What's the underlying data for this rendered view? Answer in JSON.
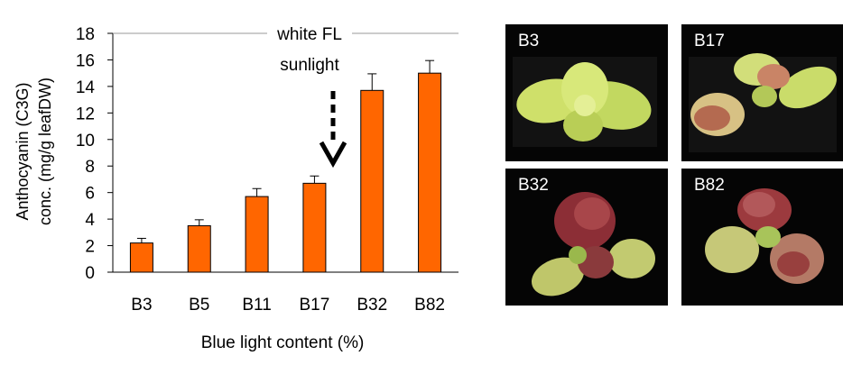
{
  "chart_data": {
    "type": "bar",
    "categories": [
      "B3",
      "B5",
      "B11",
      "B17",
      "B32",
      "B82"
    ],
    "values": [
      2.2,
      3.5,
      5.7,
      6.7,
      13.7,
      15.0
    ],
    "errors": [
      0.35,
      0.45,
      0.6,
      0.55,
      1.25,
      0.95
    ],
    "xlabel": "Blue light content (%)",
    "ylabel_line1": "Anthocyanin (C3G)",
    "ylabel_line2": "conc. (mg/g leafDW)",
    "ylim": [
      0,
      18
    ],
    "yticks": [
      0,
      2,
      4,
      6,
      8,
      10,
      12,
      14,
      16,
      18
    ],
    "bar_color": "#ff6600",
    "annotations": {
      "white_fl": "white FL",
      "sunlight": "sunlight"
    }
  },
  "photos": [
    {
      "label": "B3"
    },
    {
      "label": "B17"
    },
    {
      "label": "B32"
    },
    {
      "label": "B82"
    }
  ]
}
